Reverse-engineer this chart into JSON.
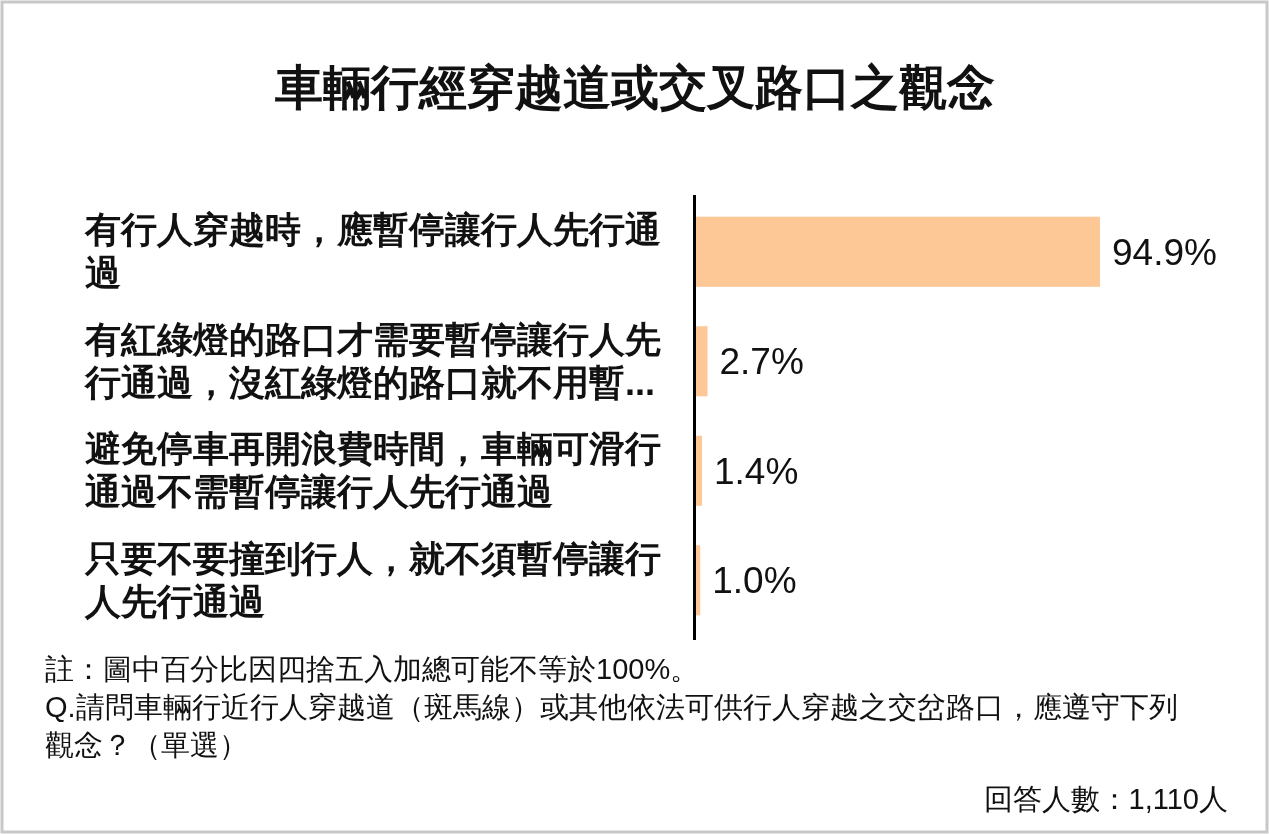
{
  "chart_data": {
    "type": "bar",
    "orientation": "horizontal",
    "title": "車輛行經穿越道或交叉路口之觀念",
    "categories": [
      "有行人穿越時，應暫停讓行人先行通過",
      "有紅綠燈的路口才需要暫停讓行人先行通過，沒紅綠燈的路口就不用暫...",
      "避免停車再開浪費時間，車輛可滑行通過不需暫停讓行人先行通過",
      "只要不要撞到行人，就不須暫停讓行人先行通過"
    ],
    "values": [
      94.9,
      2.7,
      1.4,
      1.0
    ],
    "value_labels": [
      "94.9%",
      "2.7%",
      "1.4%",
      "1.0%"
    ],
    "color": "#fdc896",
    "annotations": [
      "註：圖中百分比因四捨五入加總可能不等於100%。",
      "Q.請問車輛行近行人穿越道（斑馬線）或其他依法可供行人穿越之交岔路口，應遵守下列觀念？（單選）",
      "回答人數：1,110人"
    ]
  }
}
